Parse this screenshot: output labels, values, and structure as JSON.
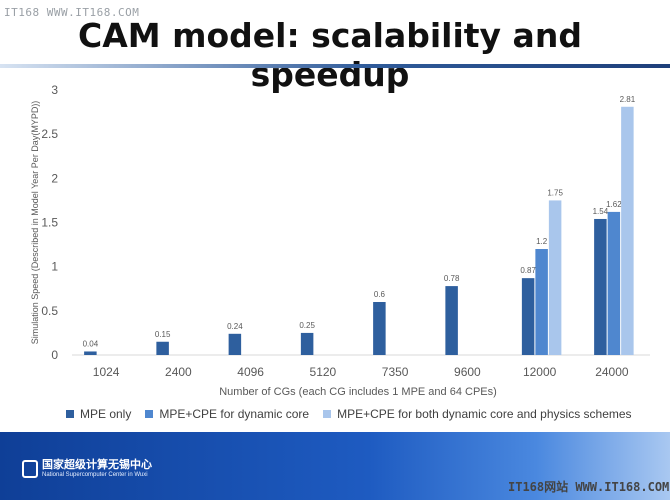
{
  "watermark_top": "IT168 WWW.IT168.COM",
  "title": "CAM model: scalability and speedup",
  "footer": {
    "org_name": "国家超级计算无锡中心",
    "org_sub": "National Supercomputer Center in Wuxi"
  },
  "watermark_bottom": "IT168网站 WWW.IT168.COM",
  "colors": {
    "mpe_only": "#2e5f9e",
    "mpe_cpe_dynamic": "#4f87cf",
    "mpe_cpe_both": "#a9c6ec",
    "axis_text": "#595959",
    "grid": "#d9d9d9"
  },
  "legend": {
    "placement": "bottom",
    "items": [
      "MPE only",
      "MPE+CPE for dynamic core",
      "MPE+CPE for both dynamic core and physics schemes"
    ]
  },
  "chart_data": {
    "type": "bar",
    "xlabel": "Number of CGs (each CG includes 1 MPE and 64 CPEs)",
    "ylabel": "Simulation Speed (Described in Model Year Per Day(MYPD))",
    "ylim": [
      0,
      3
    ],
    "yticks": [
      "0",
      "0.5",
      "1",
      "1.5",
      "2",
      "2.5",
      "3"
    ],
    "categories": [
      "1024",
      "2400",
      "4096",
      "5120",
      "7350",
      "9600",
      "12000",
      "24000"
    ],
    "grid": false,
    "series": [
      {
        "name": "MPE only",
        "values": [
          0.04,
          0.15,
          0.24,
          0.25,
          0.6,
          0.78,
          0.87,
          1.54
        ]
      },
      {
        "name": "MPE+CPE for dynamic core",
        "values": [
          null,
          null,
          null,
          null,
          null,
          null,
          1.2,
          1.62
        ]
      },
      {
        "name": "MPE+CPE for both dynamic core and physics schemes",
        "values": [
          null,
          null,
          null,
          null,
          null,
          null,
          1.75,
          2.81
        ]
      }
    ],
    "data_labels": [
      [
        "0.04",
        "0.15",
        "0.24",
        "0.25",
        "0.6",
        "0.78",
        "0.87",
        "1.54"
      ],
      [
        null,
        null,
        null,
        null,
        null,
        null,
        "1.2",
        "1.62"
      ],
      [
        null,
        null,
        null,
        null,
        null,
        null,
        "1.75",
        "2.81"
      ]
    ]
  }
}
